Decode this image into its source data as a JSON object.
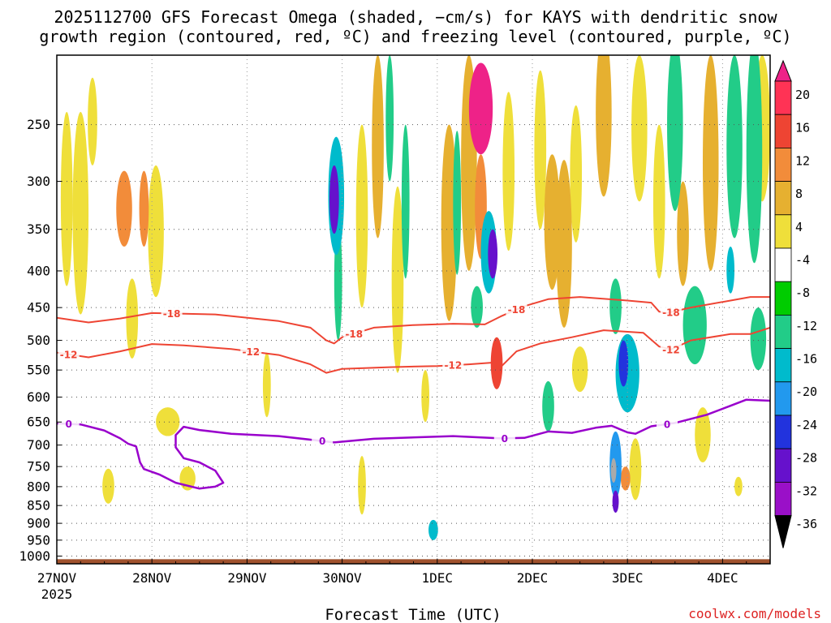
{
  "title": {
    "line1": "2025112700 GFS Forecast Omega (shaded, −cm/s) for KAYS with dendritic snow",
    "line2": "growth region (contoured, red, ºC) and freezing level (contoured, purple, ºC)"
  },
  "credit": "coolwx.com/models",
  "colors": {
    "dgz_line": "#ee4433",
    "freezing_line": "#9900cc",
    "ground": "#a0522d",
    "grid": "#555555"
  },
  "chart_data": {
    "type": "heatmap",
    "title": "2025112700 GFS Forecast Omega (shaded, −cm/s) for KAYS with dendritic snow growth region (contoured, red, ºC) and freezing level (contoured, purple, ºC)",
    "xlabel": "Forecast Time (UTC)",
    "ylabel": "",
    "x_unit": "forecast hours from 27NOV 00Z",
    "x_range": [
      0,
      180
    ],
    "y_unit": "hPa",
    "y_range": [
      1025,
      200
    ],
    "x_ticks": [
      {
        "label": "27NOV",
        "hour": 0
      },
      {
        "label": "28NOV",
        "hour": 24
      },
      {
        "label": "29NOV",
        "hour": 48
      },
      {
        "label": "30NOV",
        "hour": 72
      },
      {
        "label": "1DEC",
        "hour": 96
      },
      {
        "label": "2DEC",
        "hour": 120
      },
      {
        "label": "3DEC",
        "hour": 144
      },
      {
        "label": "4DEC",
        "hour": 168
      }
    ],
    "x_sublabel": "2025",
    "y_ticks": [
      250,
      300,
      350,
      400,
      450,
      500,
      550,
      600,
      650,
      700,
      750,
      800,
      850,
      900,
      950,
      1000
    ],
    "colorbar": {
      "levels": [
        20,
        16,
        12,
        8,
        4,
        -4,
        -8,
        -12,
        -16,
        -20,
        -24,
        -28,
        -32,
        -36
      ],
      "colors": [
        "#ff3355",
        "#ee4433",
        "#f28c3a",
        "#e6b030",
        "#efdf3a",
        "#ffffff",
        "#00cc00",
        "#22cc88",
        "#00bbcc",
        "#2299ee",
        "#2233dd",
        "#6611cc",
        "#9a10c8",
        "#aaaaaa",
        "#000000"
      ],
      "top_color": "#ee2288"
    },
    "omega_blobs": [
      {
        "t": 2.5,
        "p": 330,
        "dt": 1.5,
        "dp": 180,
        "v": 4
      },
      {
        "t": 6,
        "p": 350,
        "dt": 2,
        "dp": 220,
        "v": 4
      },
      {
        "t": 9,
        "p": 250,
        "dt": 1.2,
        "dp": 70,
        "v": 6
      },
      {
        "t": 17,
        "p": 330,
        "dt": 2,
        "dp": 80,
        "v": 12
      },
      {
        "t": 22,
        "p": 330,
        "dt": 1.2,
        "dp": 80,
        "v": 14
      },
      {
        "t": 19,
        "p": 470,
        "dt": 1.5,
        "dp": 120,
        "v": 6
      },
      {
        "t": 25,
        "p": 360,
        "dt": 2,
        "dp": 150,
        "v": 6
      },
      {
        "t": 33,
        "p": 780,
        "dt": 2,
        "dp": 60,
        "v": 6
      },
      {
        "t": 28,
        "p": 650,
        "dt": 3,
        "dp": 60,
        "v": 5
      },
      {
        "t": 13,
        "p": 800,
        "dt": 1.5,
        "dp": 90,
        "v": 5
      },
      {
        "t": 53,
        "p": 580,
        "dt": 1,
        "dp": 120,
        "v": 5
      },
      {
        "t": 70,
        "p": 320,
        "dt": 1.2,
        "dp": 70,
        "v": -24
      },
      {
        "t": 70.5,
        "p": 320,
        "dt": 2,
        "dp": 120,
        "v": -12
      },
      {
        "t": 71,
        "p": 420,
        "dt": 1,
        "dp": 160,
        "v": -8
      },
      {
        "t": 77,
        "p": 350,
        "dt": 1.5,
        "dp": 200,
        "v": 6
      },
      {
        "t": 77,
        "p": 800,
        "dt": 1,
        "dp": 150,
        "v": 4
      },
      {
        "t": 81,
        "p": 280,
        "dt": 1.5,
        "dp": 160,
        "v": 8
      },
      {
        "t": 84,
        "p": 250,
        "dt": 1,
        "dp": 100,
        "v": -8
      },
      {
        "t": 86,
        "p": 430,
        "dt": 1.5,
        "dp": 250,
        "v": 6
      },
      {
        "t": 88,
        "p": 330,
        "dt": 1,
        "dp": 160,
        "v": -8
      },
      {
        "t": 93,
        "p": 600,
        "dt": 1,
        "dp": 100,
        "v": 5
      },
      {
        "t": 95,
        "p": 920,
        "dt": 1.2,
        "dp": 60,
        "v": -12
      },
      {
        "t": 99,
        "p": 360,
        "dt": 2,
        "dp": 220,
        "v": 8
      },
      {
        "t": 101,
        "p": 330,
        "dt": 1,
        "dp": 150,
        "v": -10
      },
      {
        "t": 104,
        "p": 300,
        "dt": 2,
        "dp": 200,
        "v": 10
      },
      {
        "t": 107,
        "p": 240,
        "dt": 3,
        "dp": 70,
        "v": 22
      },
      {
        "t": 107,
        "p": 330,
        "dt": 1.5,
        "dp": 110,
        "v": 12
      },
      {
        "t": 110,
        "p": 380,
        "dt": 1.2,
        "dp": 60,
        "v": -24
      },
      {
        "t": 109,
        "p": 380,
        "dt": 2,
        "dp": 100,
        "v": -12
      },
      {
        "t": 111,
        "p": 540,
        "dt": 1.5,
        "dp": 90,
        "v": 16
      },
      {
        "t": 114,
        "p": 300,
        "dt": 1.5,
        "dp": 150,
        "v": 6
      },
      {
        "t": 106,
        "p": 450,
        "dt": 1.5,
        "dp": 60,
        "v": -8
      },
      {
        "t": 122,
        "p": 280,
        "dt": 1.5,
        "dp": 140,
        "v": 5
      },
      {
        "t": 125,
        "p": 350,
        "dt": 2,
        "dp": 150,
        "v": 10
      },
      {
        "t": 128,
        "p": 380,
        "dt": 2,
        "dp": 200,
        "v": 8
      },
      {
        "t": 131,
        "p": 300,
        "dt": 1.5,
        "dp": 130,
        "v": 6
      },
      {
        "t": 124,
        "p": 620,
        "dt": 1.5,
        "dp": 100,
        "v": -8
      },
      {
        "t": 132,
        "p": 550,
        "dt": 2,
        "dp": 80,
        "v": 4
      },
      {
        "t": 138,
        "p": 250,
        "dt": 2,
        "dp": 130,
        "v": 10
      },
      {
        "t": 141,
        "p": 450,
        "dt": 1.5,
        "dp": 80,
        "v": -8
      },
      {
        "t": 144,
        "p": 560,
        "dt": 3,
        "dp": 140,
        "v": -12
      },
      {
        "t": 143,
        "p": 540,
        "dt": 1.2,
        "dp": 80,
        "v": -20
      },
      {
        "t": 141,
        "p": 750,
        "dt": 1.5,
        "dp": 160,
        "v": -16
      },
      {
        "t": 140.5,
        "p": 760,
        "dt": 0.7,
        "dp": 60,
        "v": -33
      },
      {
        "t": 141,
        "p": 840,
        "dt": 0.8,
        "dp": 60,
        "v": -26
      },
      {
        "t": 143.5,
        "p": 780,
        "dt": 1.2,
        "dp": 60,
        "v": 14
      },
      {
        "t": 146,
        "p": 760,
        "dt": 1.5,
        "dp": 150,
        "v": 6
      },
      {
        "t": 147,
        "p": 260,
        "dt": 2,
        "dp": 120,
        "v": 6
      },
      {
        "t": 152,
        "p": 330,
        "dt": 1.5,
        "dp": 160,
        "v": 6
      },
      {
        "t": 156,
        "p": 260,
        "dt": 2,
        "dp": 140,
        "v": -10
      },
      {
        "t": 158,
        "p": 360,
        "dt": 1.5,
        "dp": 120,
        "v": 8
      },
      {
        "t": 161,
        "p": 480,
        "dt": 3,
        "dp": 120,
        "v": -8
      },
      {
        "t": 163,
        "p": 680,
        "dt": 2,
        "dp": 120,
        "v": 6
      },
      {
        "t": 165,
        "p": 300,
        "dt": 2,
        "dp": 200,
        "v": 8
      },
      {
        "t": 171,
        "p": 280,
        "dt": 2,
        "dp": 160,
        "v": -10
      },
      {
        "t": 170,
        "p": 400,
        "dt": 1,
        "dp": 60,
        "v": -12
      },
      {
        "t": 176,
        "p": 290,
        "dt": 2,
        "dp": 200,
        "v": -10
      },
      {
        "t": 177,
        "p": 500,
        "dt": 2,
        "dp": 100,
        "v": -8
      },
      {
        "t": 178,
        "p": 260,
        "dt": 2,
        "dp": 120,
        "v": 6
      },
      {
        "t": 172,
        "p": 800,
        "dt": 1,
        "dp": 50,
        "v": 5
      }
    ],
    "contours": [
      {
        "name": "dgz-minus18",
        "label": "-18",
        "group": "dgz",
        "labels_at": [
          29,
          75,
          116,
          155
        ],
        "points": [
          [
            0,
            465
          ],
          [
            8,
            472
          ],
          [
            16,
            466
          ],
          [
            24,
            458
          ],
          [
            40,
            460
          ],
          [
            56,
            470
          ],
          [
            64,
            480
          ],
          [
            68,
            500
          ],
          [
            70,
            505
          ],
          [
            72,
            495
          ],
          [
            80,
            480
          ],
          [
            90,
            476
          ],
          [
            100,
            474
          ],
          [
            108,
            475
          ],
          [
            112,
            463
          ],
          [
            118,
            448
          ],
          [
            124,
            438
          ],
          [
            132,
            435
          ],
          [
            144,
            440
          ],
          [
            150,
            443
          ],
          [
            152,
            456
          ],
          [
            154,
            458
          ],
          [
            160,
            450
          ],
          [
            170,
            440
          ],
          [
            175,
            435
          ],
          [
            180,
            435
          ]
        ]
      },
      {
        "name": "dgz-minus12",
        "label": "-12",
        "group": "dgz",
        "labels_at": [
          3,
          49,
          100,
          155
        ],
        "points": [
          [
            0,
            520
          ],
          [
            8,
            528
          ],
          [
            16,
            518
          ],
          [
            24,
            506
          ],
          [
            32,
            508
          ],
          [
            44,
            514
          ],
          [
            56,
            524
          ],
          [
            64,
            540
          ],
          [
            68,
            555
          ],
          [
            72,
            548
          ],
          [
            84,
            545
          ],
          [
            96,
            543
          ],
          [
            104,
            540
          ],
          [
            110,
            537
          ],
          [
            112,
            545
          ],
          [
            116,
            518
          ],
          [
            122,
            505
          ],
          [
            130,
            495
          ],
          [
            138,
            484
          ],
          [
            148,
            488
          ],
          [
            152,
            510
          ],
          [
            155,
            515
          ],
          [
            160,
            500
          ],
          [
            170,
            490
          ],
          [
            175,
            490
          ],
          [
            180,
            480
          ]
        ]
      },
      {
        "name": "freezing-level-main",
        "label": "0",
        "group": "freezing",
        "labels_at": [
          3,
          67,
          113,
          154
        ],
        "points": [
          [
            0,
            653
          ],
          [
            6,
            655
          ],
          [
            12,
            668
          ],
          [
            16,
            685
          ],
          [
            18,
            697
          ],
          [
            20,
            703
          ],
          [
            21,
            740
          ],
          [
            22,
            756
          ],
          [
            26,
            770
          ],
          [
            30,
            790
          ],
          [
            36,
            805
          ],
          [
            40,
            800
          ],
          [
            42,
            790
          ],
          [
            40,
            760
          ],
          [
            36,
            740
          ],
          [
            32,
            730
          ],
          [
            30,
            705
          ],
          [
            30,
            678
          ],
          [
            32,
            660
          ],
          [
            36,
            667
          ],
          [
            44,
            675
          ],
          [
            56,
            680
          ],
          [
            64,
            688
          ],
          [
            70,
            694
          ],
          [
            80,
            686
          ],
          [
            100,
            680
          ],
          [
            112,
            685
          ],
          [
            118,
            684
          ],
          [
            124,
            670
          ],
          [
            130,
            673
          ],
          [
            136,
            662
          ],
          [
            140,
            658
          ],
          [
            144,
            672
          ],
          [
            146,
            675
          ],
          [
            150,
            659
          ],
          [
            156,
            652
          ],
          [
            164,
            635
          ],
          [
            170,
            617
          ],
          [
            174,
            605
          ],
          [
            180,
            607
          ]
        ]
      }
    ],
    "contour_labels": [
      "-18",
      "-12",
      "0"
    ]
  }
}
